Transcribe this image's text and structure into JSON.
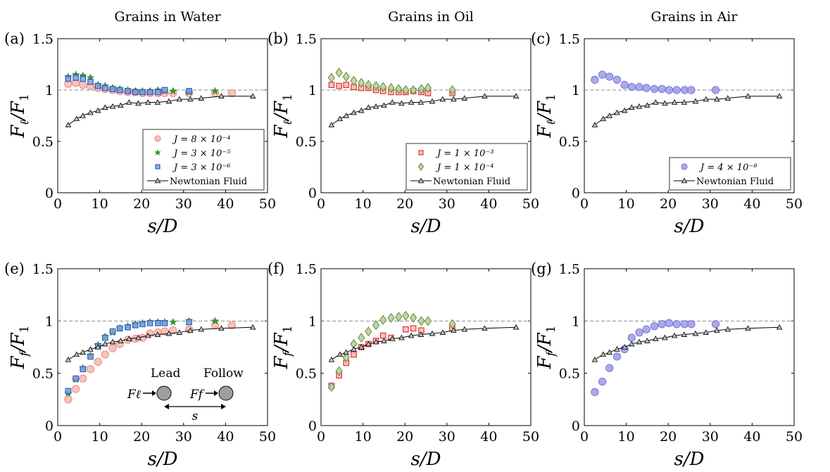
{
  "colors": {
    "water": {
      "fill": "#f7b7b0",
      "edge": "#e8857c"
    },
    "water_star": {
      "fill": "#2aa02a",
      "edge": "#1a7a1a"
    },
    "water_square": {
      "fill": "#7fa7e8",
      "edge": "#2950b8"
    },
    "oil_square": {
      "fill": "#f7b7b0",
      "edge": "#e02a2a"
    },
    "oil_diamond": {
      "fill": "#b9d39b",
      "edge": "#5f8a3a"
    },
    "air": {
      "fill": "#9b9be8",
      "edge": "#6f6fd6"
    },
    "newtonian": "#000000",
    "reference_line": "#8c8c8c"
  },
  "column_titles": [
    "Grains in Water",
    "Grains in Oil",
    "Grains in Air"
  ],
  "inset": {
    "lead_label": "Lead",
    "follow_label": "Follow",
    "f_lead": "Fℓ",
    "f_follow": "Ff",
    "s_label": "s"
  },
  "chart_data": [
    {
      "type": "scatter",
      "panel_label": "(a)",
      "xlabel": "s/D",
      "ylabel": "Fℓ/F1",
      "xlim": [
        0,
        50
      ],
      "ylim": [
        0,
        1.5
      ],
      "xticks": [
        "0",
        "10",
        "20",
        "30",
        "40",
        "50"
      ],
      "yticks": [
        "0",
        "0.5",
        "1",
        "1.5"
      ],
      "reference_y": 1,
      "legend_position": "bottom-right",
      "series": [
        {
          "name": "J = 8 × 10⁻⁴",
          "marker": "circle",
          "color": "water",
          "x": [
            2.5,
            4.3,
            6.0,
            7.8,
            9.6,
            11.3,
            13.1,
            14.8,
            16.7,
            18.5,
            20.2,
            22.0,
            23.9,
            25.5,
            27.5,
            31.3,
            37.5,
            41.5
          ],
          "y": [
            1.06,
            1.07,
            1.05,
            1.04,
            1.02,
            1.01,
            1.0,
            0.99,
            0.98,
            0.98,
            0.97,
            0.97,
            0.97,
            0.97,
            0.97,
            0.97,
            0.97,
            0.97
          ]
        },
        {
          "name": "J = 3 × 10⁻⁵",
          "marker": "star",
          "color": "water_star",
          "x": [
            2.5,
            4.3,
            6.0,
            7.8,
            9.6,
            11.3,
            13.1,
            14.8,
            16.7,
            18.5,
            20.2,
            22.0,
            23.9,
            25.5,
            27.5,
            31.3,
            37.5
          ],
          "y": [
            1.13,
            1.15,
            1.14,
            1.12,
            1.05,
            1.04,
            1.02,
            1.01,
            1.0,
            0.99,
            0.99,
            0.99,
            1.0,
            0.99,
            0.99,
            0.98,
            0.99
          ]
        },
        {
          "name": "J = 3 × 10⁻⁶",
          "marker": "square",
          "color": "water_square",
          "x": [
            2.5,
            4.3,
            6.0,
            7.8,
            9.6,
            11.3,
            13.1,
            14.8,
            16.7,
            18.5,
            20.2,
            22.0,
            23.9,
            25.5,
            31.3
          ],
          "y": [
            1.11,
            1.12,
            1.11,
            1.08,
            1.04,
            1.02,
            1.01,
            1.0,
            0.99,
            0.98,
            0.98,
            0.98,
            0.98,
            1.0,
            0.99
          ]
        },
        {
          "name": "Newtonian Fluid",
          "marker": "triangle-line",
          "color": "newtonian",
          "x": [
            2.5,
            4.5,
            6.0,
            7.8,
            9.6,
            11.3,
            13.1,
            15.0,
            17.0,
            19.2,
            21.5,
            23.8,
            26.5,
            29.0,
            31.6,
            34.2,
            39.0,
            46.5
          ],
          "y": [
            0.66,
            0.72,
            0.75,
            0.78,
            0.8,
            0.83,
            0.84,
            0.85,
            0.88,
            0.87,
            0.88,
            0.88,
            0.89,
            0.91,
            0.91,
            0.92,
            0.94,
            0.94
          ]
        }
      ]
    },
    {
      "type": "scatter",
      "panel_label": "(b)",
      "xlabel": "s/D",
      "ylabel": "Fℓ/F1",
      "xlim": [
        0,
        50
      ],
      "ylim": [
        0,
        1.5
      ],
      "xticks": [
        "0",
        "10",
        "20",
        "30",
        "40",
        "50"
      ],
      "yticks": [
        "0",
        "0.5",
        "1",
        "1.5"
      ],
      "reference_y": 1,
      "legend_position": "bottom-right",
      "series": [
        {
          "name": "J = 1 × 10⁻³",
          "marker": "square",
          "color": "oil_square",
          "x": [
            2.5,
            4.3,
            6.0,
            7.8,
            9.6,
            11.3,
            13.1,
            14.8,
            16.7,
            18.5,
            20.2,
            22.0,
            23.9,
            25.5,
            31.3
          ],
          "y": [
            1.05,
            1.04,
            1.05,
            1.03,
            1.02,
            1.02,
            1.0,
            0.99,
            0.98,
            0.98,
            0.98,
            0.99,
            0.98,
            0.97,
            0.97
          ]
        },
        {
          "name": "J = 1 × 10⁻⁴",
          "marker": "diamond",
          "color": "oil_diamond",
          "x": [
            2.5,
            4.3,
            6.0,
            7.8,
            9.6,
            11.3,
            13.1,
            14.8,
            16.7,
            18.5,
            20.2,
            22.0,
            23.9,
            25.5,
            31.3
          ],
          "y": [
            1.12,
            1.17,
            1.13,
            1.09,
            1.07,
            1.05,
            1.04,
            1.03,
            1.02,
            1.01,
            1.0,
            1.0,
            1.01,
            1.02,
            1.0
          ]
        },
        {
          "name": "Newtonian Fluid",
          "marker": "triangle-line",
          "color": "newtonian",
          "x": [
            2.5,
            4.5,
            6.0,
            7.8,
            9.6,
            11.3,
            13.1,
            15.0,
            17.0,
            19.2,
            21.5,
            23.8,
            26.5,
            29.0,
            31.6,
            34.2,
            39.0,
            46.5
          ],
          "y": [
            0.66,
            0.72,
            0.75,
            0.78,
            0.8,
            0.83,
            0.84,
            0.85,
            0.88,
            0.87,
            0.88,
            0.88,
            0.89,
            0.91,
            0.91,
            0.92,
            0.94,
            0.94
          ]
        }
      ]
    },
    {
      "type": "scatter",
      "panel_label": "(c)",
      "xlabel": "s/D",
      "ylabel": "Fℓ/F1",
      "xlim": [
        0,
        50
      ],
      "ylim": [
        0,
        1.5
      ],
      "xticks": [
        "0",
        "10",
        "20",
        "30",
        "40",
        "50"
      ],
      "yticks": [
        "0",
        "0.5",
        "1",
        "1.5"
      ],
      "reference_y": 1,
      "legend_position": "bottom-right",
      "series": [
        {
          "name": "J = 4 × 10⁻⁸",
          "marker": "circle",
          "color": "air",
          "x": [
            2.5,
            4.3,
            6.0,
            7.8,
            9.6,
            11.3,
            13.1,
            14.8,
            16.7,
            18.5,
            20.2,
            22.0,
            23.9,
            25.5,
            31.3
          ],
          "y": [
            1.1,
            1.15,
            1.13,
            1.1,
            1.05,
            1.03,
            1.03,
            1.02,
            1.01,
            1.01,
            1.0,
            1.0,
            1.0,
            1.0,
            1.0
          ]
        },
        {
          "name": "Newtonian Fluid",
          "marker": "triangle-line",
          "color": "newtonian",
          "x": [
            2.5,
            4.5,
            6.0,
            7.8,
            9.6,
            11.3,
            13.1,
            15.0,
            17.0,
            19.2,
            21.5,
            23.8,
            26.5,
            29.0,
            31.6,
            34.2,
            39.0,
            46.5
          ],
          "y": [
            0.66,
            0.72,
            0.75,
            0.78,
            0.8,
            0.83,
            0.84,
            0.85,
            0.88,
            0.87,
            0.88,
            0.88,
            0.89,
            0.91,
            0.91,
            0.92,
            0.94,
            0.94
          ]
        }
      ]
    },
    {
      "type": "scatter",
      "panel_label": "(e)",
      "xlabel": "s/D",
      "ylabel": "Ff/F1",
      "xlim": [
        0,
        50
      ],
      "ylim": [
        0,
        1.5
      ],
      "xticks": [
        "0",
        "10",
        "20",
        "30",
        "40",
        "50"
      ],
      "yticks": [
        "0",
        "0.5",
        "1",
        "1.5"
      ],
      "reference_y": 1,
      "series": [
        {
          "name": "J = 8 × 10⁻⁴",
          "marker": "circle",
          "color": "water",
          "x": [
            2.5,
            4.3,
            6.0,
            7.8,
            9.6,
            11.3,
            13.1,
            14.8,
            16.7,
            18.5,
            20.2,
            22.0,
            23.9,
            25.5,
            27.5,
            31.3,
            37.5,
            41.5
          ],
          "y": [
            0.25,
            0.35,
            0.45,
            0.54,
            0.61,
            0.68,
            0.74,
            0.78,
            0.82,
            0.83,
            0.84,
            0.88,
            0.89,
            0.9,
            0.91,
            0.92,
            0.96,
            0.96
          ]
        },
        {
          "name": "J = 3 × 10⁻⁵",
          "marker": "star",
          "color": "water_star",
          "x": [
            2.5,
            4.3,
            6.0,
            7.8,
            9.6,
            11.3,
            13.1,
            14.8,
            16.7,
            18.5,
            20.2,
            22.0,
            23.9,
            25.5,
            27.5,
            31.3,
            37.5
          ],
          "y": [
            0.31,
            0.44,
            0.55,
            0.67,
            0.77,
            0.85,
            0.89,
            0.93,
            0.95,
            0.97,
            0.98,
            0.99,
            0.99,
            0.99,
            0.99,
            1.0,
            1.0
          ]
        },
        {
          "name": "J = 3 × 10⁻⁶",
          "marker": "square",
          "color": "water_square",
          "x": [
            2.5,
            4.3,
            6.0,
            7.8,
            9.6,
            11.3,
            13.1,
            14.8,
            16.7,
            18.5,
            20.2,
            22.0,
            23.9,
            25.5,
            31.3
          ],
          "y": [
            0.33,
            0.45,
            0.54,
            0.66,
            0.76,
            0.84,
            0.9,
            0.93,
            0.94,
            0.96,
            0.97,
            0.98,
            0.98,
            0.98,
            0.99
          ]
        },
        {
          "name": "Newtonian Fluid",
          "marker": "triangle-line",
          "color": "newtonian",
          "x": [
            2.5,
            4.5,
            6.0,
            7.8,
            9.6,
            11.3,
            13.1,
            15.0,
            17.0,
            19.2,
            21.5,
            23.8,
            26.5,
            29.0,
            31.6,
            34.2,
            39.0,
            46.5
          ],
          "y": [
            0.63,
            0.68,
            0.7,
            0.73,
            0.75,
            0.78,
            0.8,
            0.81,
            0.83,
            0.84,
            0.86,
            0.87,
            0.88,
            0.89,
            0.91,
            0.92,
            0.93,
            0.94
          ]
        }
      ]
    },
    {
      "type": "scatter",
      "panel_label": "(f)",
      "xlabel": "s/D",
      "ylabel": "Ff/F1",
      "xlim": [
        0,
        50
      ],
      "ylim": [
        0,
        1.5
      ],
      "xticks": [
        "0",
        "10",
        "20",
        "30",
        "40",
        "50"
      ],
      "yticks": [
        "0",
        "0.5",
        "1",
        "1.5"
      ],
      "reference_y": 1,
      "series": [
        {
          "name": "J = 1 × 10⁻³",
          "marker": "square",
          "color": "oil_square",
          "x": [
            2.5,
            4.3,
            6.0,
            7.8,
            9.6,
            11.3,
            13.1,
            14.8,
            16.7,
            20.2,
            22.0,
            23.9,
            31.3
          ],
          "y": [
            0.38,
            0.48,
            0.6,
            0.68,
            0.75,
            0.78,
            0.81,
            0.86,
            0.84,
            0.92,
            0.93,
            0.91,
            0.93
          ]
        },
        {
          "name": "J = 1 × 10⁻⁴",
          "marker": "diamond",
          "color": "oil_diamond",
          "x": [
            2.5,
            4.3,
            6.0,
            7.8,
            9.6,
            11.3,
            13.1,
            14.8,
            16.7,
            18.5,
            20.2,
            22.0,
            23.9,
            25.5,
            31.3
          ],
          "y": [
            0.37,
            0.52,
            0.65,
            0.78,
            0.84,
            0.9,
            0.96,
            1.01,
            1.03,
            1.04,
            1.05,
            1.03,
            1.0,
            1.0,
            0.97
          ]
        },
        {
          "name": "Newtonian Fluid",
          "marker": "triangle-line",
          "color": "newtonian",
          "x": [
            2.5,
            4.5,
            6.0,
            7.8,
            9.6,
            11.3,
            13.1,
            15.0,
            17.0,
            19.2,
            21.5,
            23.8,
            26.5,
            29.0,
            31.6,
            34.2,
            39.0,
            46.5
          ],
          "y": [
            0.63,
            0.68,
            0.7,
            0.73,
            0.75,
            0.78,
            0.8,
            0.81,
            0.83,
            0.84,
            0.86,
            0.87,
            0.88,
            0.89,
            0.91,
            0.92,
            0.93,
            0.94
          ]
        }
      ]
    },
    {
      "type": "scatter",
      "panel_label": "(g)",
      "xlabel": "s/D",
      "ylabel": "Ff/F1",
      "xlim": [
        0,
        50
      ],
      "ylim": [
        0,
        1.5
      ],
      "xticks": [
        "0",
        "10",
        "20",
        "30",
        "40",
        "50"
      ],
      "yticks": [
        "0",
        "0.5",
        "1",
        "1.5"
      ],
      "reference_y": 1,
      "series": [
        {
          "name": "J = 4 × 10⁻⁸",
          "marker": "circle",
          "color": "air",
          "x": [
            2.5,
            4.3,
            6.0,
            7.8,
            9.6,
            11.3,
            13.1,
            14.8,
            16.7,
            18.5,
            20.2,
            22.0,
            23.9,
            25.5,
            31.3
          ],
          "y": [
            0.32,
            0.42,
            0.55,
            0.66,
            0.73,
            0.84,
            0.89,
            0.92,
            0.95,
            0.97,
            0.98,
            0.97,
            0.97,
            0.97,
            0.97
          ]
        },
        {
          "name": "Newtonian Fluid",
          "marker": "triangle-line",
          "color": "newtonian",
          "x": [
            2.5,
            4.5,
            6.0,
            7.8,
            9.6,
            11.3,
            13.1,
            15.0,
            17.0,
            19.2,
            21.5,
            23.8,
            26.5,
            29.0,
            31.6,
            34.2,
            39.0,
            46.5
          ],
          "y": [
            0.63,
            0.68,
            0.7,
            0.73,
            0.75,
            0.78,
            0.8,
            0.81,
            0.83,
            0.84,
            0.86,
            0.87,
            0.88,
            0.89,
            0.91,
            0.92,
            0.93,
            0.94
          ]
        }
      ]
    }
  ]
}
